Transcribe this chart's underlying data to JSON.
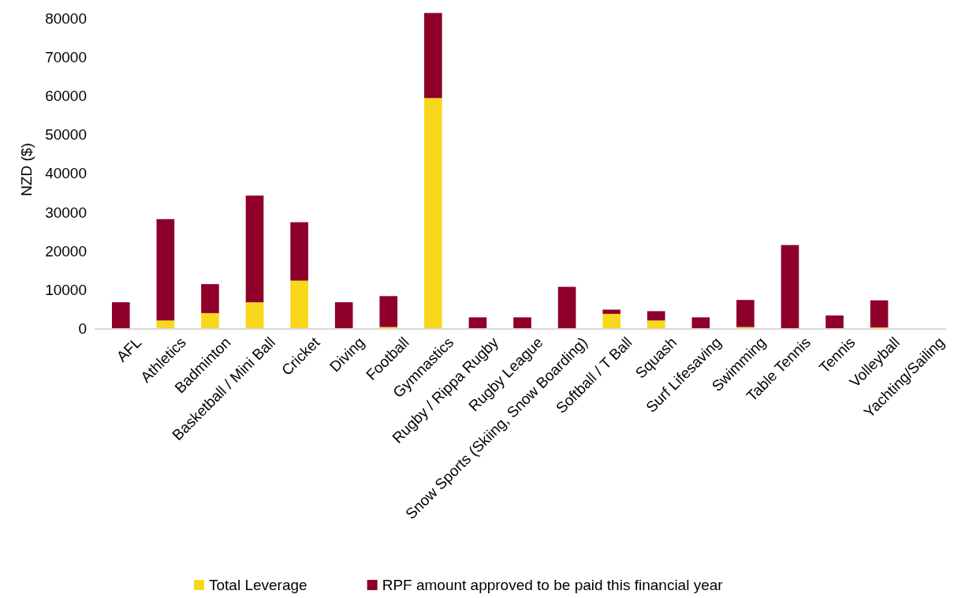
{
  "chart_data": {
    "type": "bar",
    "stacked": true,
    "ylabel": "NZD ($)",
    "categories": [
      "AFL",
      "Athletics",
      "Badminton",
      "Basketball / Mini Ball",
      "Cricket",
      "Diving",
      "Football",
      "Gymnastics",
      "Rugby / Rippa Rugby",
      "Rugby League",
      "Snow Sports (Skiing, Snow Boarding)",
      "Softball / T Ball",
      "Squash",
      "Surf Lifesaving",
      "Swimming",
      "Table Tennis",
      "Tennis",
      "Volleyball",
      "Yachting/Sailing"
    ],
    "series": [
      {
        "name": "Total Leverage",
        "color": "#f9d71c",
        "values": [
          0,
          2000,
          3900,
          6700,
          12300,
          0,
          300,
          59500,
          0,
          0,
          0,
          3700,
          2000,
          0,
          300,
          0,
          0,
          200,
          0
        ]
      },
      {
        "name": "RPF amount approved to be paid this financial year",
        "color": "#8e002a",
        "values": [
          6700,
          26200,
          7500,
          27600,
          15100,
          6700,
          8000,
          22000,
          2800,
          2800,
          10700,
          1100,
          2400,
          2800,
          7000,
          21500,
          3300,
          7000,
          0
        ]
      }
    ],
    "ylim": [
      0,
      82000
    ],
    "yticks": [
      0,
      10000,
      20000,
      30000,
      40000,
      50000,
      60000,
      70000,
      80000
    ],
    "grid": false,
    "legend": "bottom"
  }
}
